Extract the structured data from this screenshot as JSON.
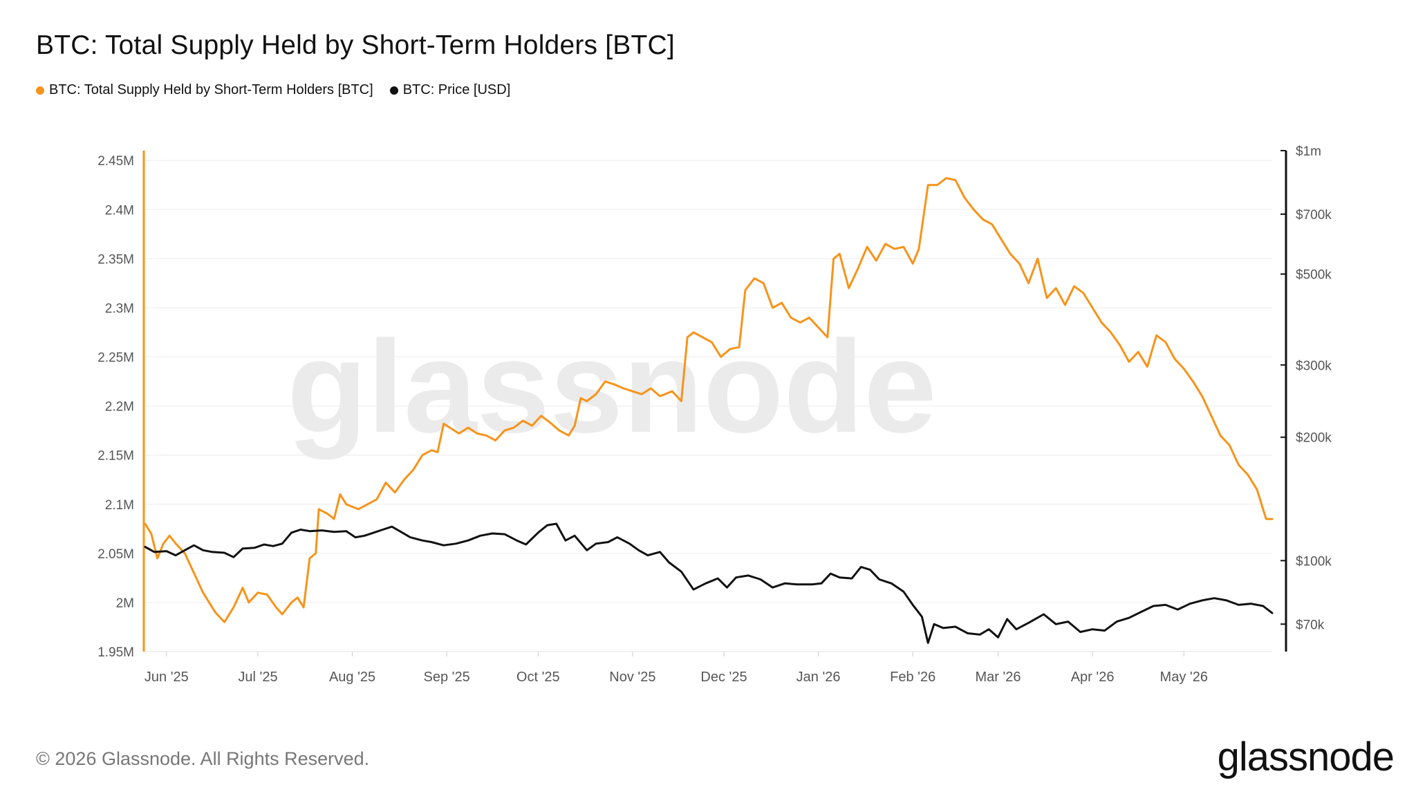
{
  "title": "BTC: Total Supply Held by Short-Term Holders [BTC]",
  "legend": [
    {
      "label": "BTC: Total Supply Held by Short-Term Holders [BTC]",
      "color": "#f7931a"
    },
    {
      "label": "BTC: Price [USD]",
      "color": "#111111"
    }
  ],
  "watermark": "glassnode",
  "footer": "© 2026 Glassnode. All Rights Reserved.",
  "logo": "glassnode",
  "chart_data": {
    "type": "line",
    "x_ticks": [
      "Jun '25",
      "Jul '25",
      "Aug '25",
      "Sep '25",
      "Oct '25",
      "Nov '25",
      "Dec '25",
      "Jan '26",
      "Feb '26",
      "Mar '26",
      "Apr '26",
      "May '26"
    ],
    "x_range": [
      "2025-05-25",
      "2026-05-30"
    ],
    "left_axis": {
      "tick_labels": [
        "1.95M",
        "2M",
        "2.05M",
        "2.1M",
        "2.15M",
        "2.2M",
        "2.25M",
        "2.3M",
        "2.35M",
        "2.4M",
        "2.45M"
      ],
      "ticks": [
        1950000,
        2000000,
        2050000,
        2100000,
        2150000,
        2200000,
        2250000,
        2300000,
        2350000,
        2400000,
        2450000
      ],
      "range": [
        1950000,
        2460000
      ]
    },
    "right_axis": {
      "scale": "log",
      "tick_labels": [
        "$70k",
        "$100k",
        "$200k",
        "$300k",
        "$500k",
        "$700k",
        "$1m"
      ],
      "ticks": [
        70000,
        100000,
        200000,
        300000,
        500000,
        700000,
        1000000
      ],
      "range": [
        60000,
        1000000
      ]
    },
    "grid": true,
    "legend_position": "top-left",
    "series": [
      {
        "name": "BTC: Total Supply Held by Short-Term Holders [BTC]",
        "axis": "left",
        "color": "#f7931a",
        "points": [
          [
            "2025-05-25",
            2080000
          ],
          [
            "2025-05-27",
            2070000
          ],
          [
            "2025-05-29",
            2045000
          ],
          [
            "2025-05-31",
            2060000
          ],
          [
            "2025-06-02",
            2068000
          ],
          [
            "2025-06-04",
            2060000
          ],
          [
            "2025-06-07",
            2050000
          ],
          [
            "2025-06-10",
            2030000
          ],
          [
            "2025-06-13",
            2010000
          ],
          [
            "2025-06-17",
            1990000
          ],
          [
            "2025-06-20",
            1980000
          ],
          [
            "2025-06-23",
            1995000
          ],
          [
            "2025-06-26",
            2015000
          ],
          [
            "2025-06-28",
            2000000
          ],
          [
            "2025-07-01",
            2010000
          ],
          [
            "2025-07-04",
            2008000
          ],
          [
            "2025-07-07",
            1995000
          ],
          [
            "2025-07-09",
            1988000
          ],
          [
            "2025-07-12",
            2000000
          ],
          [
            "2025-07-14",
            2005000
          ],
          [
            "2025-07-16",
            1995000
          ],
          [
            "2025-07-18",
            2045000
          ],
          [
            "2025-07-20",
            2050000
          ],
          [
            "2025-07-21",
            2095000
          ],
          [
            "2025-07-24",
            2090000
          ],
          [
            "2025-07-26",
            2085000
          ],
          [
            "2025-07-28",
            2110000
          ],
          [
            "2025-07-30",
            2100000
          ],
          [
            "2025-08-03",
            2095000
          ],
          [
            "2025-08-06",
            2100000
          ],
          [
            "2025-08-09",
            2105000
          ],
          [
            "2025-08-12",
            2122000
          ],
          [
            "2025-08-15",
            2112000
          ],
          [
            "2025-08-18",
            2125000
          ],
          [
            "2025-08-21",
            2135000
          ],
          [
            "2025-08-24",
            2150000
          ],
          [
            "2025-08-27",
            2155000
          ],
          [
            "2025-08-29",
            2153000
          ],
          [
            "2025-08-31",
            2182000
          ],
          [
            "2025-09-02",
            2178000
          ],
          [
            "2025-09-05",
            2172000
          ],
          [
            "2025-09-08",
            2178000
          ],
          [
            "2025-09-11",
            2172000
          ],
          [
            "2025-09-14",
            2170000
          ],
          [
            "2025-09-17",
            2165000
          ],
          [
            "2025-09-20",
            2175000
          ],
          [
            "2025-09-23",
            2178000
          ],
          [
            "2025-09-26",
            2185000
          ],
          [
            "2025-09-29",
            2180000
          ],
          [
            "2025-10-02",
            2190000
          ],
          [
            "2025-10-05",
            2183000
          ],
          [
            "2025-10-08",
            2175000
          ],
          [
            "2025-10-11",
            2170000
          ],
          [
            "2025-10-13",
            2180000
          ],
          [
            "2025-10-15",
            2208000
          ],
          [
            "2025-10-17",
            2205000
          ],
          [
            "2025-10-20",
            2212000
          ],
          [
            "2025-10-23",
            2225000
          ],
          [
            "2025-10-26",
            2222000
          ],
          [
            "2025-10-29",
            2218000
          ],
          [
            "2025-11-01",
            2215000
          ],
          [
            "2025-11-04",
            2212000
          ],
          [
            "2025-11-07",
            2218000
          ],
          [
            "2025-11-10",
            2210000
          ],
          [
            "2025-11-14",
            2215000
          ],
          [
            "2025-11-17",
            2205000
          ],
          [
            "2025-11-19",
            2270000
          ],
          [
            "2025-11-21",
            2275000
          ],
          [
            "2025-11-24",
            2270000
          ],
          [
            "2025-11-27",
            2265000
          ],
          [
            "2025-11-30",
            2250000
          ],
          [
            "2025-12-03",
            2258000
          ],
          [
            "2025-12-06",
            2260000
          ],
          [
            "2025-12-08",
            2318000
          ],
          [
            "2025-12-11",
            2330000
          ],
          [
            "2025-12-14",
            2325000
          ],
          [
            "2025-12-17",
            2300000
          ],
          [
            "2025-12-20",
            2305000
          ],
          [
            "2025-12-23",
            2290000
          ],
          [
            "2025-12-26",
            2285000
          ],
          [
            "2025-12-29",
            2290000
          ],
          [
            "2026-01-01",
            2280000
          ],
          [
            "2026-01-04",
            2270000
          ],
          [
            "2026-01-06",
            2350000
          ],
          [
            "2026-01-08",
            2355000
          ],
          [
            "2026-01-11",
            2320000
          ],
          [
            "2026-01-14",
            2340000
          ],
          [
            "2026-01-17",
            2362000
          ],
          [
            "2026-01-20",
            2348000
          ],
          [
            "2026-01-23",
            2365000
          ],
          [
            "2026-01-26",
            2360000
          ],
          [
            "2026-01-29",
            2362000
          ],
          [
            "2026-02-01",
            2345000
          ],
          [
            "2026-02-03",
            2360000
          ],
          [
            "2026-02-06",
            2425000
          ],
          [
            "2026-02-09",
            2425000
          ],
          [
            "2026-02-12",
            2432000
          ],
          [
            "2026-02-15",
            2430000
          ],
          [
            "2026-02-18",
            2412000
          ],
          [
            "2026-02-21",
            2400000
          ],
          [
            "2026-02-24",
            2390000
          ],
          [
            "2026-02-27",
            2385000
          ],
          [
            "2026-03-02",
            2370000
          ],
          [
            "2026-03-05",
            2355000
          ],
          [
            "2026-03-08",
            2345000
          ],
          [
            "2026-03-11",
            2325000
          ],
          [
            "2026-03-14",
            2350000
          ],
          [
            "2026-03-17",
            2310000
          ],
          [
            "2026-03-20",
            2320000
          ],
          [
            "2026-03-23",
            2303000
          ],
          [
            "2026-03-26",
            2322000
          ],
          [
            "2026-03-29",
            2315000
          ],
          [
            "2026-04-01",
            2300000
          ],
          [
            "2026-04-04",
            2285000
          ],
          [
            "2026-04-07",
            2275000
          ],
          [
            "2026-04-10",
            2262000
          ],
          [
            "2026-04-13",
            2245000
          ],
          [
            "2026-04-16",
            2255000
          ],
          [
            "2026-04-19",
            2240000
          ],
          [
            "2026-04-22",
            2272000
          ],
          [
            "2026-04-25",
            2265000
          ],
          [
            "2026-04-28",
            2248000
          ],
          [
            "2026-05-01",
            2238000
          ],
          [
            "2026-05-04",
            2225000
          ],
          [
            "2026-05-07",
            2210000
          ],
          [
            "2026-05-10",
            2190000
          ],
          [
            "2026-05-13",
            2170000
          ],
          [
            "2026-05-16",
            2160000
          ],
          [
            "2026-05-19",
            2140000
          ],
          [
            "2026-05-22",
            2130000
          ],
          [
            "2026-05-25",
            2115000
          ],
          [
            "2026-05-28",
            2085000
          ],
          [
            "2026-05-30",
            2085000
          ]
        ]
      },
      {
        "name": "BTC: Price [USD]",
        "axis": "right",
        "color": "#111111",
        "points": [
          [
            "2025-05-25",
            108000
          ],
          [
            "2025-05-28",
            105000
          ],
          [
            "2025-06-01",
            105500
          ],
          [
            "2025-06-04",
            103000
          ],
          [
            "2025-06-07",
            106000
          ],
          [
            "2025-06-10",
            109000
          ],
          [
            "2025-06-13",
            106000
          ],
          [
            "2025-06-16",
            105000
          ],
          [
            "2025-06-20",
            104500
          ],
          [
            "2025-06-23",
            102000
          ],
          [
            "2025-06-26",
            107000
          ],
          [
            "2025-06-30",
            107500
          ],
          [
            "2025-07-03",
            109500
          ],
          [
            "2025-07-06",
            108500
          ],
          [
            "2025-07-09",
            110000
          ],
          [
            "2025-07-12",
            117000
          ],
          [
            "2025-07-15",
            119000
          ],
          [
            "2025-07-18",
            118000
          ],
          [
            "2025-07-22",
            118500
          ],
          [
            "2025-07-26",
            117500
          ],
          [
            "2025-07-30",
            118000
          ],
          [
            "2025-08-02",
            114000
          ],
          [
            "2025-08-05",
            115000
          ],
          [
            "2025-08-08",
            117000
          ],
          [
            "2025-08-11",
            119000
          ],
          [
            "2025-08-14",
            121000
          ],
          [
            "2025-08-17",
            117500
          ],
          [
            "2025-08-20",
            114000
          ],
          [
            "2025-08-24",
            112000
          ],
          [
            "2025-08-27",
            111000
          ],
          [
            "2025-08-31",
            109000
          ],
          [
            "2025-09-04",
            110000
          ],
          [
            "2025-09-08",
            112000
          ],
          [
            "2025-09-12",
            115000
          ],
          [
            "2025-09-16",
            116500
          ],
          [
            "2025-09-20",
            116000
          ],
          [
            "2025-09-24",
            112000
          ],
          [
            "2025-09-27",
            109500
          ],
          [
            "2025-10-01",
            117000
          ],
          [
            "2025-10-04",
            122000
          ],
          [
            "2025-10-07",
            123000
          ],
          [
            "2025-10-10",
            112000
          ],
          [
            "2025-10-13",
            115000
          ],
          [
            "2025-10-17",
            106000
          ],
          [
            "2025-10-20",
            110000
          ],
          [
            "2025-10-24",
            111000
          ],
          [
            "2025-10-27",
            114000
          ],
          [
            "2025-10-31",
            110000
          ],
          [
            "2025-11-03",
            106000
          ],
          [
            "2025-11-06",
            103000
          ],
          [
            "2025-11-10",
            105000
          ],
          [
            "2025-11-13",
            99000
          ],
          [
            "2025-11-17",
            94000
          ],
          [
            "2025-11-21",
            85000
          ],
          [
            "2025-11-25",
            88000
          ],
          [
            "2025-11-29",
            90500
          ],
          [
            "2025-12-02",
            86000
          ],
          [
            "2025-12-05",
            91000
          ],
          [
            "2025-12-09",
            92000
          ],
          [
            "2025-12-13",
            90000
          ],
          [
            "2025-12-17",
            86000
          ],
          [
            "2025-12-21",
            88000
          ],
          [
            "2025-12-25",
            87500
          ],
          [
            "2025-12-30",
            87500
          ],
          [
            "2026-01-02",
            88000
          ],
          [
            "2026-01-05",
            93000
          ],
          [
            "2026-01-08",
            91000
          ],
          [
            "2026-01-12",
            90500
          ],
          [
            "2026-01-15",
            96500
          ],
          [
            "2026-01-18",
            95000
          ],
          [
            "2026-01-21",
            90000
          ],
          [
            "2026-01-25",
            88000
          ],
          [
            "2026-01-29",
            84000
          ],
          [
            "2026-02-01",
            78000
          ],
          [
            "2026-02-04",
            73000
          ],
          [
            "2026-02-06",
            63000
          ],
          [
            "2026-02-08",
            70000
          ],
          [
            "2026-02-11",
            68500
          ],
          [
            "2026-02-15",
            69000
          ],
          [
            "2026-02-19",
            66500
          ],
          [
            "2026-02-23",
            66000
          ],
          [
            "2026-02-26",
            68000
          ],
          [
            "2026-03-01",
            65000
          ],
          [
            "2026-03-04",
            72000
          ],
          [
            "2026-03-07",
            68000
          ],
          [
            "2026-03-11",
            70500
          ],
          [
            "2026-03-16",
            74000
          ],
          [
            "2026-03-20",
            70000
          ],
          [
            "2026-03-24",
            71000
          ],
          [
            "2026-03-28",
            67000
          ],
          [
            "2026-04-01",
            68000
          ],
          [
            "2026-04-05",
            67500
          ],
          [
            "2026-04-09",
            71000
          ],
          [
            "2026-04-13",
            72500
          ],
          [
            "2026-04-17",
            75000
          ],
          [
            "2026-04-21",
            77500
          ],
          [
            "2026-04-25",
            78000
          ],
          [
            "2026-04-29",
            76000
          ],
          [
            "2026-05-03",
            78500
          ],
          [
            "2026-05-07",
            80000
          ],
          [
            "2026-05-11",
            81000
          ],
          [
            "2026-05-15",
            80000
          ],
          [
            "2026-05-19",
            78000
          ],
          [
            "2026-05-23",
            78500
          ],
          [
            "2026-05-27",
            77500
          ],
          [
            "2026-05-30",
            74500
          ]
        ]
      }
    ]
  }
}
